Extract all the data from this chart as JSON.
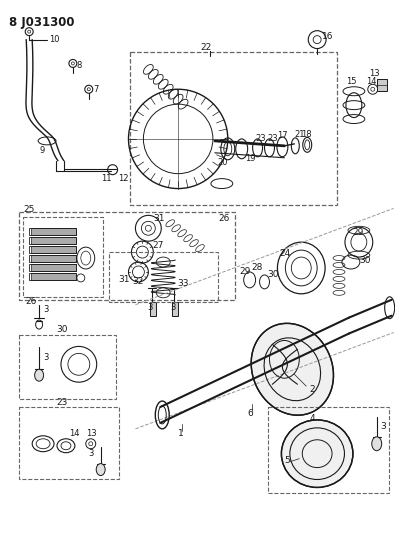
{
  "title": "8 J031300",
  "bg_color": "#ffffff",
  "line_color": "#1a1a1a",
  "dash_box_color": "#666666",
  "fig_width": 3.96,
  "fig_height": 5.33,
  "dpi": 100
}
